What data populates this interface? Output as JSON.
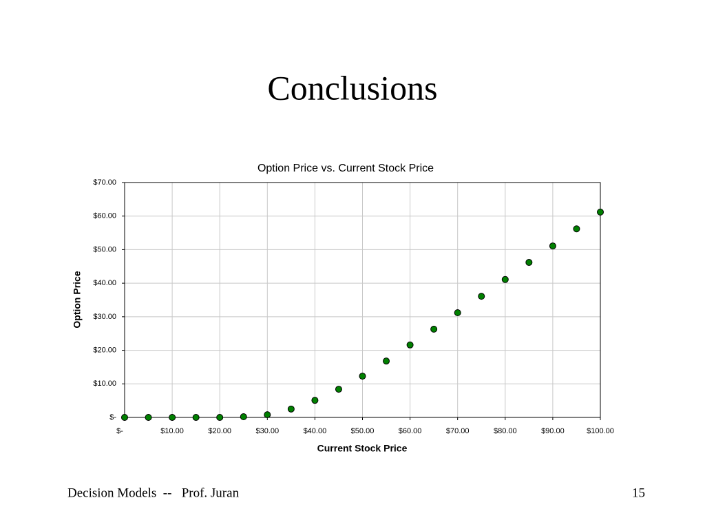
{
  "slide": {
    "title": "Conclusions",
    "footer": "Decision Models  --   Prof. Juran",
    "page_number": "15"
  },
  "chart_data": {
    "type": "scatter",
    "title": "Option Price vs. Current Stock Price",
    "x_label": "Current Stock Price",
    "y_label": "Option Price",
    "x": [
      0,
      5,
      10,
      15,
      20,
      25,
      30,
      35,
      40,
      45,
      50,
      55,
      60,
      65,
      70,
      75,
      80,
      85,
      90,
      95,
      100
    ],
    "series": [
      {
        "color": "#008000",
        "values": [
          0,
          0,
          0,
          0,
          0,
          0.2,
          0.8,
          2.5,
          5.1,
          8.4,
          12.3,
          16.8,
          21.6,
          26.3,
          31.2,
          36.1,
          41.1,
          46.2,
          51.1,
          56.2,
          61.2
        ]
      }
    ],
    "xlim": [
      0,
      100
    ],
    "ylim": [
      0,
      70
    ],
    "xticks": [
      {
        "value": 0,
        "label": "$-"
      },
      {
        "value": 10,
        "label": "$10.00"
      },
      {
        "value": 20,
        "label": "$20.00"
      },
      {
        "value": 30,
        "label": "$30.00"
      },
      {
        "value": 40,
        "label": "$40.00"
      },
      {
        "value": 50,
        "label": "$50.00"
      },
      {
        "value": 60,
        "label": "$60.00"
      },
      {
        "value": 70,
        "label": "$70.00"
      },
      {
        "value": 80,
        "label": "$80.00"
      },
      {
        "value": 90,
        "label": "$90.00"
      },
      {
        "value": 100,
        "label": "$100.00"
      }
    ],
    "yticks": [
      {
        "value": 0,
        "label": "$-"
      },
      {
        "value": 10,
        "label": "$10.00"
      },
      {
        "value": 20,
        "label": "$20.00"
      },
      {
        "value": 30,
        "label": "$30.00"
      },
      {
        "value": 40,
        "label": "$40.00"
      },
      {
        "value": 50,
        "label": "$50.00"
      },
      {
        "value": 60,
        "label": "$60.00"
      },
      {
        "value": 70,
        "label": "$70.00"
      }
    ],
    "grid": true
  }
}
